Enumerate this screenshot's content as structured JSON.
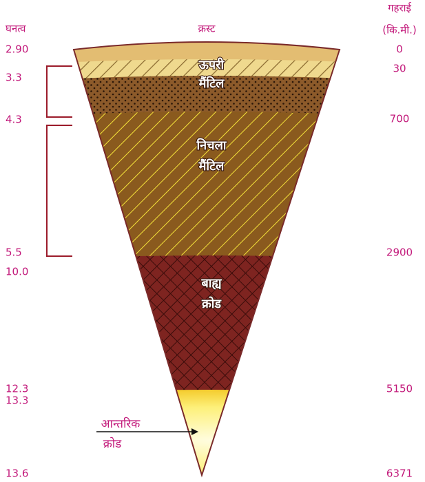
{
  "headers": {
    "density": "घनत्व",
    "crust": "क्रस्ट",
    "depth": [
      "गहराई",
      "(कि.मी.)"
    ]
  },
  "densities": [
    "2.90",
    "3.3",
    "4.3",
    "5.5",
    "10.0",
    "12.3",
    "13.3",
    "13.6"
  ],
  "depths": [
    "0",
    "30",
    "700",
    "2900",
    "5150",
    "6371"
  ],
  "layers": {
    "upper_mantle": [
      "ऊपरी",
      "मैंटिल"
    ],
    "lower_mantle": [
      "निचला",
      "मैंटिल"
    ],
    "outer_core": [
      "बाह्य",
      "क्रोड"
    ],
    "inner_core": [
      "आन्तरिक",
      "क्रोड"
    ]
  }
}
